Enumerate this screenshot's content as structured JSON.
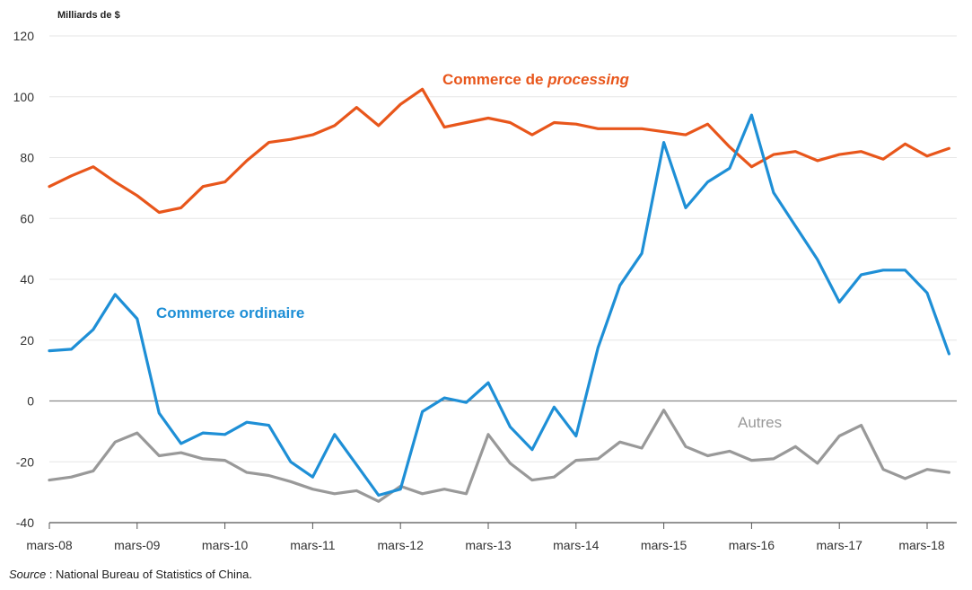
{
  "chart_data": {
    "type": "line",
    "y_unit_label": "Milliards de $",
    "ylim": [
      -40,
      120
    ],
    "yticks": [
      -40,
      -20,
      0,
      20,
      40,
      60,
      80,
      100,
      120
    ],
    "x_tick_labels": [
      "mars-08",
      "mars-09",
      "mars-10",
      "mars-11",
      "mars-12",
      "mars-13",
      "mars-14",
      "mars-15",
      "mars-16",
      "mars-17",
      "mars-18"
    ],
    "x_points_per_year": 4,
    "grid": true,
    "colors": {
      "processing": "#e8561b",
      "ordinaire": "#1e8fd6",
      "autres": "#999999",
      "grid": "#e6e6e6",
      "zero": "#8a8a8a"
    },
    "series": [
      {
        "name": "Commerce de processing",
        "label_plain": "Commerce de ",
        "label_italic": "processing",
        "values": [
          70.5,
          74,
          77,
          72,
          67.5,
          62,
          63.5,
          70.5,
          72,
          79,
          85,
          86,
          87.5,
          90.5,
          96.5,
          90.5,
          97.5,
          102.5,
          90,
          91.5,
          93,
          91.5,
          87.5,
          91.5,
          91,
          89.5,
          89.5,
          89.5,
          88.5,
          87.5,
          91,
          83.5,
          77,
          81,
          82,
          79,
          81,
          82,
          79.5,
          84.5,
          80.5,
          83
        ]
      },
      {
        "name": "Commerce ordinaire",
        "values": [
          16.5,
          17,
          23.5,
          35,
          27,
          -4,
          -14,
          -10.5,
          -11,
          -7,
          -8,
          -20,
          -25,
          -11,
          -21,
          -31,
          -29,
          -3.5,
          1,
          -0.5,
          6,
          -8.5,
          -16,
          -2,
          -11.5,
          17.5,
          38,
          48.5,
          85,
          63.5,
          72,
          76.5,
          94,
          68.5,
          57.5,
          46.5,
          32.5,
          41.5,
          43,
          43,
          35.5,
          15.5
        ]
      },
      {
        "name": "Autres",
        "values": [
          -26,
          -25,
          -23,
          -13.5,
          -10.5,
          -18,
          -17,
          -19,
          -19.5,
          -23.5,
          -24.5,
          -26.5,
          -29,
          -30.5,
          -29.5,
          -33,
          -28,
          -30.5,
          -29,
          -30.5,
          -11,
          -20.5,
          -26,
          -25,
          -19.5,
          -19,
          -13.5,
          -15.5,
          -3,
          -15,
          -18,
          -16.5,
          -19.5,
          -19,
          -15,
          -20.5,
          -11.5,
          -8,
          -22.5,
          -25.5,
          -22.5,
          -23.5
        ]
      }
    ]
  },
  "source": {
    "prefix": "Source",
    "text": " : National Bureau of Statistics of China."
  }
}
